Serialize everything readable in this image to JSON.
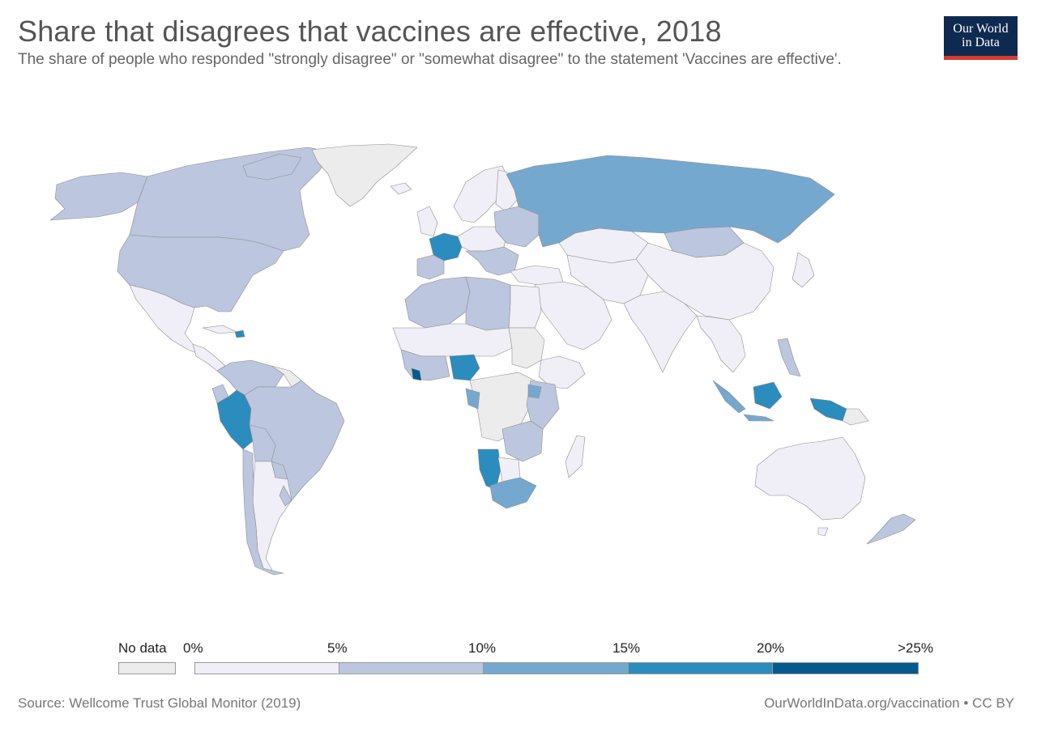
{
  "title": "Share that disagrees that vaccines are effective, 2018",
  "subtitle": "The share of people who responded \"strongly disagree\" or \"somewhat disagree\" to the statement 'Vaccines are effective'.",
  "logo": {
    "line1": "Our World",
    "line2": "in Data"
  },
  "legend": {
    "no_data": "No data",
    "ticks": [
      "0%",
      "5%",
      "10%",
      "15%",
      "20%",
      ">25%"
    ]
  },
  "colors": {
    "no_data": "#ececec",
    "bin_0_5": "#f0eff7",
    "bin_5_10": "#bcc6de",
    "bin_10_15": "#75a8cf",
    "bin_15_20": "#2b8cbe",
    "bin_20_25": "#045a8d",
    "border": "#8e8e8e",
    "logo_bg": "#0f2a50",
    "logo_bar": "#d73a30"
  },
  "source": "Source: Wellcome Trust Global Monitor (2019)",
  "credit": "OurWorldInData.org/vaccination • CC BY"
}
